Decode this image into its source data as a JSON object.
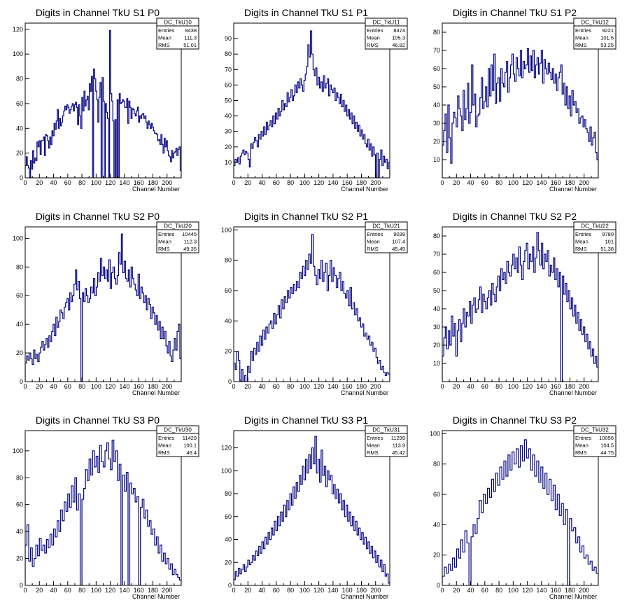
{
  "colors": {
    "line": "#000080",
    "axis": "#000000",
    "background": "#ffffff"
  },
  "chart_data": [
    {
      "type": "histogram",
      "name": "DC_TkU10",
      "title": "Digits in Channel TkU S1 P0",
      "xlabel": "Channel Number",
      "xlim": [
        0,
        220
      ],
      "ylim": [
        0,
        125
      ],
      "yticks": [
        0,
        20,
        40,
        60,
        80,
        100,
        120
      ],
      "xticks": [
        0,
        20,
        40,
        60,
        80,
        100,
        120,
        140,
        160,
        180,
        200
      ],
      "entries": "8438",
      "mean": "111.3",
      "rms": "51.01",
      "values": [
        10,
        17,
        10,
        8,
        0,
        14,
        7,
        22,
        12,
        16,
        14,
        29,
        25,
        30,
        19,
        30,
        30,
        33,
        18,
        35,
        34,
        30,
        24,
        33,
        27,
        38,
        34,
        44,
        39,
        46,
        55,
        40,
        48,
        42,
        45,
        50,
        54,
        58,
        55,
        59,
        57,
        52,
        55,
        58,
        60,
        54,
        59,
        61,
        57,
        43,
        59,
        50,
        40,
        65,
        54,
        70,
        58,
        63,
        66,
        55,
        76,
        70,
        82,
        0,
        88,
        80,
        70,
        63,
        45,
        65,
        77,
        0,
        81,
        62,
        0,
        60,
        53,
        48,
        0,
        119,
        68,
        62,
        46,
        0,
        47,
        0,
        63,
        0,
        68,
        60,
        61,
        63,
        62,
        57,
        57,
        64,
        44,
        62,
        57,
        48,
        56,
        55,
        52,
        50,
        54,
        57,
        45,
        50,
        48,
        51,
        52,
        48,
        50,
        45,
        40,
        46,
        43,
        40,
        44,
        41,
        38,
        36,
        36,
        35,
        30,
        31,
        27,
        35,
        27,
        20,
        32,
        25,
        30,
        22,
        18,
        17,
        13,
        22,
        16,
        20,
        21,
        24,
        18,
        23,
        25,
        6
      ]
    },
    {
      "type": "histogram",
      "name": "DC_TkU11",
      "title": "Digits in Channel TkU S1 P1",
      "xlabel": "Channel Number",
      "xlim": [
        0,
        220
      ],
      "ylim": [
        0,
        100
      ],
      "yticks": [
        10,
        20,
        30,
        40,
        50,
        60,
        70,
        80,
        90
      ],
      "xticks": [
        0,
        20,
        40,
        60,
        80,
        100,
        120,
        140,
        160,
        180,
        200
      ],
      "entries": "8474",
      "mean": "105.3",
      "rms": "46.82",
      "values": [
        8,
        12,
        10,
        13,
        9,
        14,
        16,
        18,
        15,
        17,
        16,
        12,
        7,
        22,
        19,
        23,
        26,
        24,
        20,
        28,
        25,
        30,
        27,
        33,
        28,
        36,
        31,
        34,
        37,
        33,
        40,
        35,
        42,
        38,
        45,
        40,
        43,
        50,
        44,
        48,
        46,
        55,
        49,
        52,
        57,
        50,
        53,
        60,
        55,
        62,
        58,
        64,
        60,
        56,
        63,
        67,
        72,
        86,
        78,
        95,
        80,
        70,
        66,
        71,
        60,
        65,
        58,
        62,
        56,
        66,
        58,
        61,
        64,
        53,
        60,
        57,
        55,
        58,
        50,
        55,
        52,
        48,
        54,
        46,
        50,
        43,
        47,
        40,
        44,
        38,
        42,
        35,
        40,
        32,
        36,
        30,
        34,
        27,
        31,
        25,
        28,
        22,
        20,
        25,
        18,
        22,
        14,
        20,
        15,
        0,
        16,
        0,
        12,
        18,
        8,
        14,
        10,
        12,
        6,
        10
      ]
    },
    {
      "type": "histogram",
      "name": "DC_TkU12",
      "title": "Digits in Channel TkU S1 P2",
      "xlabel": "Channel Number",
      "xlim": [
        0,
        220
      ],
      "ylim": [
        0,
        85
      ],
      "yticks": [
        10,
        20,
        30,
        40,
        50,
        60,
        70,
        80
      ],
      "xticks": [
        0,
        20,
        40,
        60,
        80,
        100,
        120,
        140,
        160,
        180,
        200
      ],
      "entries": "9221",
      "mean": "101.5",
      "rms": "53.25",
      "values": [
        18,
        26,
        35,
        14,
        40,
        22,
        8,
        30,
        36,
        33,
        28,
        45,
        38,
        34,
        26,
        48,
        32,
        38,
        52,
        30,
        36,
        62,
        40,
        46,
        28,
        34,
        35,
        44,
        55,
        38,
        42,
        50,
        39,
        60,
        45,
        62,
        48,
        68,
        41,
        52,
        55,
        42,
        60,
        52,
        50,
        58,
        64,
        47,
        55,
        62,
        68,
        57,
        53,
        66,
        60,
        56,
        70,
        55,
        64,
        60,
        62,
        71,
        58,
        67,
        59,
        70,
        55,
        62,
        66,
        57,
        63,
        70,
        52,
        65,
        60,
        57,
        63,
        58,
        54,
        60,
        52,
        57,
        48,
        55,
        58,
        62,
        46,
        52,
        40,
        50,
        38,
        45,
        34,
        48,
        40,
        42,
        36,
        38,
        30,
        33,
        34,
        28,
        32,
        27,
        25,
        20,
        28,
        18,
        22,
        25,
        14,
        10
      ]
    },
    {
      "type": "histogram",
      "name": "DC_TkU20",
      "title": "Digits in Channel TkU S2 P0",
      "xlabel": "Channel Number",
      "xlim": [
        0,
        220
      ],
      "ylim": [
        0,
        108
      ],
      "yticks": [
        0,
        20,
        40,
        60,
        80,
        100
      ],
      "xticks": [
        0,
        20,
        40,
        60,
        80,
        100,
        120,
        140,
        160,
        180,
        200
      ],
      "entries": "10445",
      "mean": "112.3",
      "rms": "49.35",
      "values": [
        13,
        18,
        15,
        20,
        16,
        12,
        22,
        16,
        19,
        14,
        20,
        24,
        28,
        22,
        26,
        30,
        24,
        32,
        28,
        35,
        40,
        32,
        45,
        38,
        42,
        50,
        48,
        44,
        52,
        55,
        58,
        50,
        62,
        56,
        60,
        68,
        78,
        64,
        70,
        58,
        0,
        62,
        56,
        65,
        60,
        55,
        58,
        66,
        62,
        72,
        60,
        66,
        76,
        70,
        86,
        74,
        80,
        72,
        78,
        70,
        85,
        65,
        76,
        80,
        72,
        68,
        74,
        90,
        82,
        103,
        76,
        84,
        72,
        70,
        78,
        66,
        80,
        72,
        68,
        64,
        60,
        75,
        58,
        66,
        62,
        55,
        60,
        50,
        58,
        54,
        44,
        52,
        48,
        40,
        46,
        36,
        42,
        30,
        38,
        30,
        35,
        25,
        20,
        28,
        18,
        14,
        22,
        30,
        22,
        35,
        40,
        16
      ]
    },
    {
      "type": "histogram",
      "name": "DC_TkU21",
      "title": "Digits in Channel TkU S2 P1",
      "xlabel": "Channel Number",
      "xlim": [
        0,
        220
      ],
      "ylim": [
        0,
        102
      ],
      "yticks": [
        0,
        20,
        40,
        60,
        80,
        100
      ],
      "xticks": [
        0,
        20,
        40,
        60,
        80,
        100,
        120,
        140,
        160,
        180,
        200
      ],
      "entries": "9039",
      "mean": "107.4",
      "rms": "45.49",
      "values": [
        12,
        8,
        20,
        14,
        0,
        8,
        0,
        4,
        0,
        10,
        6,
        20,
        14,
        22,
        18,
        26,
        20,
        30,
        24,
        34,
        28,
        36,
        32,
        38,
        40,
        35,
        45,
        38,
        44,
        50,
        42,
        54,
        48,
        56,
        52,
        60,
        55,
        62,
        58,
        64,
        60,
        66,
        62,
        72,
        68,
        76,
        70,
        80,
        74,
        84,
        78,
        97,
        76,
        70,
        64,
        74,
        68,
        80,
        66,
        72,
        78,
        60,
        70,
        80,
        66,
        75,
        70,
        62,
        68,
        72,
        60,
        66,
        58,
        55,
        60,
        50,
        62,
        48,
        52,
        44,
        48,
        40,
        42,
        36,
        38,
        30,
        32,
        28,
        30,
        24,
        26,
        20,
        22,
        16,
        12,
        14,
        8,
        10,
        6,
        4,
        6,
        5
      ]
    },
    {
      "type": "histogram",
      "name": "DC_TkU22",
      "title": "Digits in Channel TkU S2 P2",
      "xlabel": "Channel Number",
      "xlim": [
        0,
        220
      ],
      "ylim": [
        0,
        85
      ],
      "yticks": [
        10,
        20,
        30,
        40,
        50,
        60,
        70,
        80
      ],
      "xticks": [
        0,
        20,
        40,
        60,
        80,
        100,
        120,
        140,
        160,
        180,
        200
      ],
      "entries": "9780",
      "mean": "101",
      "rms": "51.38",
      "values": [
        14,
        24,
        30,
        18,
        28,
        20,
        36,
        25,
        32,
        14,
        28,
        34,
        22,
        32,
        40,
        30,
        38,
        36,
        44,
        32,
        42,
        46,
        38,
        40,
        45,
        52,
        38,
        48,
        44,
        40,
        46,
        50,
        42,
        54,
        48,
        44,
        52,
        58,
        50,
        62,
        56,
        60,
        54,
        66,
        60,
        58,
        64,
        70,
        62,
        68,
        60,
        74,
        64,
        56,
        66,
        72,
        76,
        62,
        70,
        66,
        74,
        60,
        68,
        82,
        72,
        64,
        76,
        62,
        70,
        66,
        72,
        58,
        64,
        60,
        68,
        56,
        62,
        52,
        60,
        0,
        58,
        48,
        54,
        44,
        50,
        40,
        46,
        36,
        42,
        32,
        38,
        28,
        34,
        26,
        30,
        22,
        26,
        18,
        22,
        14,
        18,
        10,
        14,
        8
      ]
    },
    {
      "type": "histogram",
      "name": "DC_TkU30",
      "title": "Digits in Channel TkU S3 P0",
      "xlabel": "Channel Number",
      "xlim": [
        0,
        220
      ],
      "ylim": [
        0,
        115
      ],
      "yticks": [
        0,
        20,
        40,
        60,
        80,
        100
      ],
      "xticks": [
        0,
        20,
        40,
        60,
        80,
        100,
        120,
        140,
        160,
        180,
        200
      ],
      "entries": "11429",
      "mean": "100.1",
      "rms": "46.4",
      "values": [
        30,
        45,
        18,
        28,
        14,
        20,
        30,
        22,
        35,
        26,
        30,
        24,
        34,
        28,
        38,
        30,
        42,
        36,
        48,
        40,
        56,
        48,
        62,
        55,
        68,
        58,
        74,
        62,
        80,
        56,
        68,
        0,
        64,
        72,
        86,
        78,
        94,
        82,
        100,
        88,
        96,
        84,
        104,
        92,
        88,
        100,
        106,
        94,
        86,
        108,
        92,
        100,
        78,
        90,
        0,
        82,
        70,
        84,
        0,
        76,
        68,
        72,
        62,
        66,
        0,
        58,
        64,
        50,
        56,
        44,
        48,
        38,
        42,
        30,
        36,
        24,
        30,
        18,
        24,
        16,
        20,
        12,
        16,
        8,
        12,
        8,
        6,
        4
      ]
    },
    {
      "type": "histogram",
      "name": "DC_TkU31",
      "title": "Digits in Channel TkU S3 P1",
      "xlabel": "Channel Number",
      "xlim": [
        0,
        220
      ],
      "ylim": [
        0,
        135
      ],
      "yticks": [
        0,
        20,
        40,
        60,
        80,
        100,
        120
      ],
      "xticks": [
        0,
        20,
        40,
        60,
        80,
        100,
        120,
        140,
        160,
        180,
        200
      ],
      "entries": "11299",
      "mean": "113.9",
      "rms": "45.42",
      "values": [
        5,
        12,
        8,
        15,
        10,
        14,
        18,
        12,
        16,
        22,
        18,
        20,
        26,
        22,
        30,
        26,
        34,
        28,
        38,
        32,
        42,
        36,
        46,
        40,
        50,
        44,
        56,
        48,
        60,
        52,
        64,
        56,
        70,
        60,
        74,
        66,
        80,
        70,
        86,
        76,
        90,
        82,
        96,
        88,
        104,
        92,
        110,
        98,
        114,
        102,
        120,
        106,
        130,
        98,
        110,
        90,
        118,
        96,
        104,
        86,
        100,
        92,
        96,
        80,
        88,
        76,
        84,
        72,
        80,
        66,
        74,
        60,
        70,
        56,
        64,
        52,
        60,
        48,
        56,
        44,
        50,
        40,
        46,
        36,
        42,
        32,
        38,
        28,
        34,
        24,
        30,
        20,
        26,
        16,
        22,
        12,
        18,
        8,
        10,
        2
      ]
    },
    {
      "type": "histogram",
      "name": "DC_TkU32",
      "title": "Digits in Channel TkU S3 P2",
      "xlabel": "Channel Number",
      "xlim": [
        0,
        220
      ],
      "ylim": [
        0,
        102
      ],
      "yticks": [
        0,
        20,
        40,
        60,
        80,
        100
      ],
      "xticks": [
        0,
        20,
        40,
        60,
        80,
        100,
        120,
        140,
        160,
        180,
        200
      ],
      "entries": "10056",
      "mean": "104.5",
      "rms": "44.75",
      "values": [
        6,
        12,
        8,
        14,
        10,
        18,
        12,
        24,
        18,
        30,
        22,
        36,
        28,
        0,
        32,
        40,
        34,
        44,
        56,
        48,
        60,
        54,
        64,
        58,
        70,
        62,
        74,
        66,
        78,
        70,
        82,
        72,
        86,
        76,
        88,
        80,
        90,
        78,
        92,
        82,
        96,
        84,
        90,
        76,
        86,
        72,
        82,
        68,
        78,
        64,
        74,
        60,
        70,
        56,
        66,
        50,
        60,
        46,
        54,
        40,
        50,
        0,
        44,
        36,
        38,
        28,
        32,
        22,
        26,
        18,
        20,
        14,
        16,
        10,
        12,
        8
      ]
    }
  ]
}
